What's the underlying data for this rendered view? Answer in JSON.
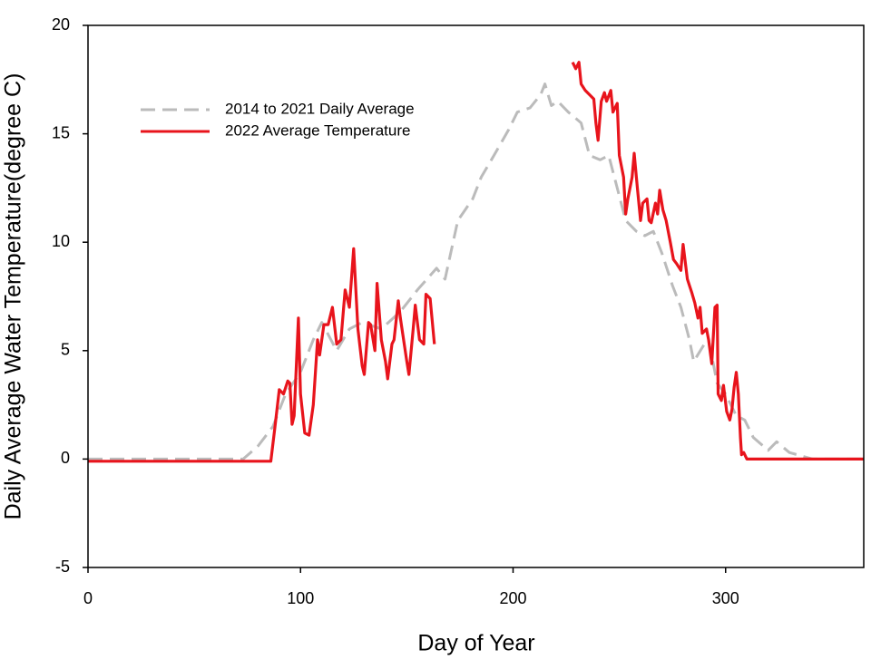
{
  "chart_data": {
    "type": "line",
    "x_label": "Day of Year",
    "y_label": "Daily Average Water Temperature(degree C)",
    "xlim": [
      0,
      365
    ],
    "ylim": [
      -5,
      20
    ],
    "xticks": [
      0,
      100,
      200,
      300
    ],
    "yticks": [
      -5,
      0,
      5,
      10,
      15,
      20
    ],
    "grid": false,
    "legend": "upper left",
    "series": [
      {
        "name": "2014 to 2021 Daily Average",
        "color": "#bbbbbb",
        "dashed": true,
        "x": [
          0,
          73,
          80,
          87,
          93,
          100,
          106,
          110,
          117,
          123,
          129,
          138,
          147,
          155,
          164,
          168,
          174,
          181,
          185,
          191,
          198,
          202,
          208,
          213,
          215,
          218,
          221,
          226,
          232,
          236,
          241,
          245,
          249,
          253,
          258,
          262,
          266,
          270,
          275,
          279,
          283,
          285,
          290,
          292,
          296,
          300,
          305,
          309,
          313,
          320,
          324,
          330,
          341,
          365
        ],
        "values": [
          0,
          0,
          0.6,
          1.5,
          3.0,
          4.0,
          5.5,
          6.3,
          5.0,
          6.0,
          6.3,
          6.0,
          6.8,
          7.8,
          8.8,
          8.3,
          11.0,
          12.0,
          13.0,
          14.0,
          15.2,
          16.0,
          16.2,
          16.8,
          17.3,
          16.3,
          16.5,
          16.0,
          15.5,
          14.0,
          13.8,
          14.0,
          12.5,
          11.0,
          10.5,
          10.3,
          10.5,
          9.5,
          8.0,
          7.0,
          5.5,
          4.5,
          5.3,
          5.5,
          3.5,
          3.0,
          2.0,
          1.8,
          1.0,
          0.4,
          0.8,
          0.3,
          0,
          0
        ]
      },
      {
        "name": "2022 Average Temperature",
        "color": "#e8141c",
        "dashed": false,
        "x": [
          0,
          86,
          88,
          90,
          92,
          94,
          95,
          96,
          97,
          99,
          100,
          102,
          104,
          106,
          108,
          109,
          111,
          113,
          115,
          117,
          119,
          121,
          123,
          125,
          127,
          129,
          130,
          132,
          133,
          135,
          136,
          138,
          140,
          141,
          143,
          144,
          146,
          147,
          150,
          151,
          153,
          154,
          156,
          158,
          159,
          161,
          163,
          196,
          228,
          229.5,
          231,
          232,
          234,
          236,
          238,
          239,
          240,
          241.5,
          243,
          244,
          246,
          247,
          249,
          250,
          252,
          253,
          254,
          256,
          257,
          258.5,
          260,
          261,
          263,
          264,
          265,
          267,
          268,
          269,
          270.5,
          272,
          274,
          275.5,
          277,
          279,
          280,
          282,
          283,
          284,
          285.5,
          287,
          288,
          289,
          291,
          292,
          293.5,
          295,
          296,
          296.5,
          298,
          299,
          300.5,
          302,
          303,
          304,
          305,
          306,
          307,
          307.5,
          308.5,
          310,
          365
        ],
        "values": [
          -0.1,
          -0.1,
          1.5,
          3.2,
          3.0,
          3.6,
          3.5,
          1.6,
          2.0,
          6.5,
          3.0,
          1.2,
          1.1,
          2.5,
          5.5,
          4.8,
          6.2,
          6.2,
          7.0,
          5.3,
          5.5,
          7.8,
          7.0,
          9.7,
          6.0,
          4.3,
          3.9,
          6.3,
          6.2,
          5.0,
          8.1,
          5.5,
          4.5,
          3.7,
          5.3,
          5.5,
          7.3,
          6.5,
          4.5,
          3.9,
          6.0,
          7.1,
          5.5,
          5.3,
          7.6,
          7.4,
          5.3,
          null,
          18.3,
          18.0,
          18.3,
          17.3,
          17.0,
          16.8,
          16.6,
          15.5,
          14.7,
          16.5,
          16.9,
          16.5,
          17.0,
          16.0,
          16.4,
          14.0,
          13.0,
          11.3,
          12.0,
          13.0,
          14.1,
          12.5,
          11.0,
          11.8,
          12.0,
          11.0,
          10.9,
          11.8,
          11.3,
          12.4,
          11.5,
          11.0,
          10.0,
          9.2,
          9.0,
          8.7,
          9.9,
          8.3,
          8.0,
          7.7,
          7.2,
          6.5,
          7.0,
          5.8,
          6.0,
          5.5,
          4.4,
          7.0,
          7.1,
          3.0,
          2.7,
          3.4,
          2.2,
          1.8,
          2.3,
          3.3,
          4.0,
          3.0,
          1.0,
          0.2,
          0.3,
          0,
          0
        ]
      }
    ]
  }
}
